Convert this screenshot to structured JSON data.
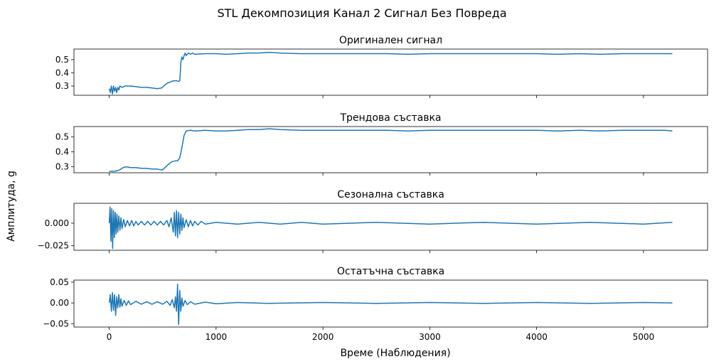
{
  "chart_data": {
    "type": "line",
    "title": "STL Декомпозиция Канал 2 Сигнал Без Повреда",
    "xlabel": "Време (Наблюдения)",
    "ylabel": "Амплитуда, g",
    "x_range": [
      0,
      5270
    ],
    "xlim": [
      -330,
      5600
    ],
    "xticks": [
      0,
      1000,
      2000,
      3000,
      4000,
      5000
    ],
    "xtick_labels": [
      "0",
      "1000",
      "2000",
      "3000",
      "4000",
      "5000"
    ],
    "series_color": "#1f77b4",
    "panels": [
      {
        "name": "original",
        "title": "Оригинален сигнал",
        "ylim": [
          0.23,
          0.58
        ],
        "yticks": [
          0.3,
          0.4,
          0.5
        ],
        "ytick_labels": [
          "0.3",
          "0.4",
          "0.5"
        ],
        "points": [
          [
            0,
            0.28
          ],
          [
            10,
            0.25
          ],
          [
            20,
            0.3
          ],
          [
            30,
            0.24
          ],
          [
            40,
            0.3
          ],
          [
            50,
            0.26
          ],
          [
            60,
            0.29
          ],
          [
            70,
            0.25
          ],
          [
            80,
            0.29
          ],
          [
            90,
            0.27
          ],
          [
            100,
            0.3
          ],
          [
            120,
            0.29
          ],
          [
            150,
            0.3
          ],
          [
            200,
            0.3
          ],
          [
            250,
            0.295
          ],
          [
            300,
            0.29
          ],
          [
            350,
            0.29
          ],
          [
            400,
            0.285
          ],
          [
            450,
            0.28
          ],
          [
            490,
            0.285
          ],
          [
            510,
            0.3
          ],
          [
            540,
            0.32
          ],
          [
            570,
            0.33
          ],
          [
            600,
            0.34
          ],
          [
            630,
            0.34
          ],
          [
            650,
            0.335
          ],
          [
            660,
            0.34
          ],
          [
            665,
            0.4
          ],
          [
            670,
            0.48
          ],
          [
            680,
            0.52
          ],
          [
            690,
            0.5
          ],
          [
            700,
            0.53
          ],
          [
            710,
            0.55
          ],
          [
            720,
            0.53
          ],
          [
            740,
            0.55
          ],
          [
            760,
            0.54
          ],
          [
            780,
            0.55
          ],
          [
            800,
            0.54
          ],
          [
            900,
            0.545
          ],
          [
            1000,
            0.545
          ],
          [
            1100,
            0.54
          ],
          [
            1200,
            0.545
          ],
          [
            1300,
            0.55
          ],
          [
            1400,
            0.55
          ],
          [
            1500,
            0.555
          ],
          [
            1600,
            0.55
          ],
          [
            1800,
            0.545
          ],
          [
            2000,
            0.545
          ],
          [
            2200,
            0.545
          ],
          [
            2400,
            0.545
          ],
          [
            2600,
            0.545
          ],
          [
            2800,
            0.54
          ],
          [
            3000,
            0.545
          ],
          [
            3200,
            0.545
          ],
          [
            3400,
            0.545
          ],
          [
            3600,
            0.545
          ],
          [
            3800,
            0.545
          ],
          [
            4000,
            0.545
          ],
          [
            4200,
            0.54
          ],
          [
            4400,
            0.545
          ],
          [
            4600,
            0.54
          ],
          [
            4800,
            0.545
          ],
          [
            5000,
            0.545
          ],
          [
            5200,
            0.545
          ],
          [
            5270,
            0.545
          ]
        ]
      },
      {
        "name": "trend",
        "title": "Трендова съставка",
        "ylim": [
          0.26,
          0.57
        ],
        "yticks": [
          0.3,
          0.4,
          0.5
        ],
        "ytick_labels": [
          "0.3",
          "0.4",
          "0.5"
        ],
        "points": [
          [
            0,
            0.27
          ],
          [
            50,
            0.27
          ],
          [
            80,
            0.275
          ],
          [
            100,
            0.28
          ],
          [
            130,
            0.295
          ],
          [
            160,
            0.3
          ],
          [
            200,
            0.295
          ],
          [
            250,
            0.295
          ],
          [
            300,
            0.29
          ],
          [
            350,
            0.29
          ],
          [
            400,
            0.285
          ],
          [
            450,
            0.285
          ],
          [
            480,
            0.28
          ],
          [
            500,
            0.28
          ],
          [
            530,
            0.3
          ],
          [
            560,
            0.32
          ],
          [
            590,
            0.335
          ],
          [
            620,
            0.34
          ],
          [
            640,
            0.34
          ],
          [
            660,
            0.36
          ],
          [
            680,
            0.43
          ],
          [
            700,
            0.51
          ],
          [
            720,
            0.54
          ],
          [
            760,
            0.545
          ],
          [
            800,
            0.54
          ],
          [
            900,
            0.545
          ],
          [
            1000,
            0.54
          ],
          [
            1100,
            0.54
          ],
          [
            1200,
            0.545
          ],
          [
            1300,
            0.55
          ],
          [
            1400,
            0.55
          ],
          [
            1500,
            0.555
          ],
          [
            1600,
            0.55
          ],
          [
            1800,
            0.545
          ],
          [
            2000,
            0.545
          ],
          [
            2200,
            0.545
          ],
          [
            2400,
            0.545
          ],
          [
            2600,
            0.545
          ],
          [
            2800,
            0.54
          ],
          [
            3000,
            0.545
          ],
          [
            3200,
            0.545
          ],
          [
            3400,
            0.545
          ],
          [
            3600,
            0.545
          ],
          [
            3800,
            0.545
          ],
          [
            4000,
            0.545
          ],
          [
            4200,
            0.54
          ],
          [
            4400,
            0.545
          ],
          [
            4600,
            0.54
          ],
          [
            4800,
            0.545
          ],
          [
            5000,
            0.545
          ],
          [
            5200,
            0.545
          ],
          [
            5270,
            0.54
          ]
        ]
      },
      {
        "name": "seasonal",
        "title": "Сезонална съставка",
        "ylim": [
          -0.03,
          0.022
        ],
        "yticks": [
          -0.025,
          0.0
        ],
        "ytick_labels": [
          "−0.025",
          "0.000"
        ],
        "points": [
          [
            0,
            0.0
          ],
          [
            8,
            0.018
          ],
          [
            16,
            -0.02
          ],
          [
            24,
            0.016
          ],
          [
            32,
            -0.028
          ],
          [
            40,
            0.014
          ],
          [
            48,
            -0.016
          ],
          [
            56,
            0.012
          ],
          [
            64,
            -0.012
          ],
          [
            72,
            0.01
          ],
          [
            80,
            -0.01
          ],
          [
            90,
            0.008
          ],
          [
            100,
            -0.008
          ],
          [
            110,
            0.006
          ],
          [
            120,
            -0.006
          ],
          [
            135,
            0.004
          ],
          [
            150,
            -0.004
          ],
          [
            170,
            0.003
          ],
          [
            190,
            -0.003
          ],
          [
            210,
            0.003
          ],
          [
            230,
            -0.003
          ],
          [
            250,
            0.002
          ],
          [
            270,
            -0.002
          ],
          [
            300,
            0.002
          ],
          [
            330,
            -0.002
          ],
          [
            360,
            0.002
          ],
          [
            390,
            -0.002
          ],
          [
            420,
            0.002
          ],
          [
            450,
            -0.002
          ],
          [
            480,
            0.002
          ],
          [
            510,
            -0.002
          ],
          [
            540,
            0.003
          ],
          [
            560,
            -0.004
          ],
          [
            580,
            0.006
          ],
          [
            600,
            -0.01
          ],
          [
            610,
            0.012
          ],
          [
            620,
            -0.014
          ],
          [
            630,
            0.014
          ],
          [
            640,
            -0.016
          ],
          [
            650,
            0.012
          ],
          [
            660,
            -0.012
          ],
          [
            670,
            0.01
          ],
          [
            680,
            -0.008
          ],
          [
            690,
            0.006
          ],
          [
            700,
            -0.005
          ],
          [
            720,
            0.004
          ],
          [
            740,
            -0.004
          ],
          [
            760,
            0.003
          ],
          [
            780,
            -0.003
          ],
          [
            800,
            0.002
          ],
          [
            830,
            -0.002
          ],
          [
            860,
            0.002
          ],
          [
            900,
            -0.001
          ],
          [
            1000,
            0.001
          ],
          [
            1200,
            -0.001
          ],
          [
            1400,
            0.001
          ],
          [
            1600,
            -0.001
          ],
          [
            1800,
            0.001
          ],
          [
            2000,
            -0.001
          ],
          [
            2500,
            0.001
          ],
          [
            3000,
            -0.001
          ],
          [
            3500,
            0.001
          ],
          [
            4000,
            -0.001
          ],
          [
            4500,
            0.001
          ],
          [
            5000,
            -0.001
          ],
          [
            5270,
            0.001
          ]
        ]
      },
      {
        "name": "residual",
        "title": "Остатъчна съставка",
        "ylim": [
          -0.058,
          0.055
        ],
        "yticks": [
          -0.05,
          0.0,
          0.05
        ],
        "ytick_labels": [
          "−0.05",
          "0.00",
          "0.05"
        ],
        "points": [
          [
            0,
            0.0
          ],
          [
            10,
            0.02
          ],
          [
            20,
            -0.02
          ],
          [
            30,
            0.025
          ],
          [
            40,
            -0.018
          ],
          [
            50,
            0.02
          ],
          [
            60,
            -0.03
          ],
          [
            70,
            0.015
          ],
          [
            80,
            -0.012
          ],
          [
            90,
            0.02
          ],
          [
            100,
            -0.01
          ],
          [
            110,
            0.01
          ],
          [
            120,
            -0.008
          ],
          [
            140,
            0.006
          ],
          [
            160,
            -0.006
          ],
          [
            180,
            0.005
          ],
          [
            200,
            -0.004
          ],
          [
            250,
            0.004
          ],
          [
            300,
            -0.003
          ],
          [
            350,
            0.003
          ],
          [
            400,
            -0.003
          ],
          [
            450,
            0.003
          ],
          [
            500,
            -0.003
          ],
          [
            540,
            0.004
          ],
          [
            570,
            -0.006
          ],
          [
            590,
            0.008
          ],
          [
            610,
            -0.012
          ],
          [
            620,
            0.015
          ],
          [
            630,
            -0.02
          ],
          [
            640,
            0.045
          ],
          [
            650,
            -0.052
          ],
          [
            660,
            0.03
          ],
          [
            670,
            -0.02
          ],
          [
            680,
            0.012
          ],
          [
            690,
            -0.008
          ],
          [
            710,
            0.006
          ],
          [
            730,
            -0.004
          ],
          [
            760,
            0.003
          ],
          [
            800,
            -0.003
          ],
          [
            900,
            0.002
          ],
          [
            1000,
            -0.002
          ],
          [
            1200,
            0.001
          ],
          [
            1500,
            -0.001
          ],
          [
            2000,
            0.001
          ],
          [
            2500,
            -0.001
          ],
          [
            3000,
            0.001
          ],
          [
            3500,
            -0.001
          ],
          [
            4000,
            0.001
          ],
          [
            4500,
            -0.001
          ],
          [
            5000,
            0.001
          ],
          [
            5270,
            0.0
          ]
        ]
      }
    ]
  }
}
